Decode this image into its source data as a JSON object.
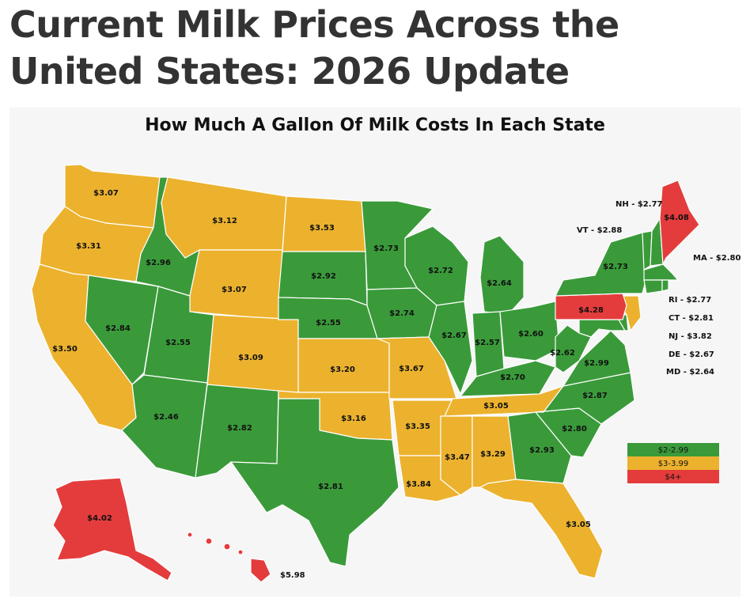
{
  "headline": "Current Milk Prices Across the United States: 2026 Update",
  "map": {
    "title": "How Much A Gallon Of Milk Costs In Each State",
    "colors": {
      "low": "#3a9a3a",
      "mid": "#ecb22e",
      "high": "#e43c3c"
    },
    "legend": [
      {
        "label": "$2-2.99",
        "range": [
          2,
          2.99
        ]
      },
      {
        "label": "$3-3.99",
        "range": [
          3,
          3.99
        ]
      },
      {
        "label": "$4+",
        "range": [
          4,
          null
        ]
      }
    ],
    "states": [
      {
        "code": "WA",
        "price": 3.07,
        "label": "$3.07"
      },
      {
        "code": "OR",
        "price": 3.31,
        "label": "$3.31"
      },
      {
        "code": "CA",
        "price": 3.5,
        "label": "$3.50"
      },
      {
        "code": "NV",
        "price": 2.84,
        "label": "$2.84"
      },
      {
        "code": "ID",
        "price": 2.96,
        "label": "$2.96"
      },
      {
        "code": "MT",
        "price": 3.12,
        "label": "$3.12"
      },
      {
        "code": "WY",
        "price": 3.07,
        "label": "$3.07"
      },
      {
        "code": "UT",
        "price": 2.55,
        "label": "$2.55"
      },
      {
        "code": "AZ",
        "price": 2.46,
        "label": "$2.46"
      },
      {
        "code": "CO",
        "price": 3.09,
        "label": "$3.09"
      },
      {
        "code": "NM",
        "price": 2.82,
        "label": "$2.82"
      },
      {
        "code": "ND",
        "price": 3.53,
        "label": "$3.53"
      },
      {
        "code": "SD",
        "price": 2.92,
        "label": "$2.92"
      },
      {
        "code": "NE",
        "price": 2.55,
        "label": "$2.55"
      },
      {
        "code": "KS",
        "price": 3.2,
        "label": "$3.20"
      },
      {
        "code": "OK",
        "price": 3.16,
        "label": "$3.16"
      },
      {
        "code": "TX",
        "price": 2.81,
        "label": "$2.81"
      },
      {
        "code": "MN",
        "price": 2.73,
        "label": "$2.73"
      },
      {
        "code": "IA",
        "price": 2.74,
        "label": "$2.74"
      },
      {
        "code": "MO",
        "price": 3.67,
        "label": "$3.67"
      },
      {
        "code": "AR",
        "price": 3.35,
        "label": "$3.35"
      },
      {
        "code": "LA",
        "price": 3.84,
        "label": "$3.84"
      },
      {
        "code": "WI",
        "price": 2.72,
        "label": "$2.72"
      },
      {
        "code": "IL",
        "price": 2.67,
        "label": "$2.67"
      },
      {
        "code": "MI",
        "price": 2.64,
        "label": "$2.64"
      },
      {
        "code": "IN",
        "price": 2.57,
        "label": "$2.57"
      },
      {
        "code": "OH",
        "price": 2.6,
        "label": "$2.60"
      },
      {
        "code": "KY",
        "price": 2.7,
        "label": "$2.70"
      },
      {
        "code": "TN",
        "price": 3.05,
        "label": "$3.05"
      },
      {
        "code": "MS",
        "price": 3.47,
        "label": "$3.47"
      },
      {
        "code": "AL",
        "price": 3.29,
        "label": "$3.29"
      },
      {
        "code": "GA",
        "price": 2.93,
        "label": "$2.93"
      },
      {
        "code": "FL",
        "price": 3.05,
        "label": "$3.05"
      },
      {
        "code": "SC",
        "price": 2.8,
        "label": "$2.80"
      },
      {
        "code": "NC",
        "price": 2.87,
        "label": "$2.87"
      },
      {
        "code": "VA",
        "price": 2.99,
        "label": "$2.99"
      },
      {
        "code": "WV",
        "price": 2.62,
        "label": "$2.62"
      },
      {
        "code": "PA",
        "price": 4.28,
        "label": "$4.28"
      },
      {
        "code": "NY",
        "price": 2.73,
        "label": "$2.73"
      },
      {
        "code": "ME",
        "price": 4.08,
        "label": "$4.08"
      },
      {
        "code": "AK",
        "price": 4.02,
        "label": "$4.02"
      },
      {
        "code": "HI",
        "price": 5.98,
        "label": "$5.98"
      },
      {
        "code": "NH",
        "price": 2.77,
        "label": "NH - $2.77"
      },
      {
        "code": "VT",
        "price": 2.88,
        "label": "VT - $2.88"
      },
      {
        "code": "MA",
        "price": 2.8,
        "label": "MA - $2.80"
      },
      {
        "code": "RI",
        "price": 2.77,
        "label": "RI - $2.77"
      },
      {
        "code": "CT",
        "price": 2.81,
        "label": "CT - $2.81"
      },
      {
        "code": "NJ",
        "price": 3.82,
        "label": "NJ - $3.82"
      },
      {
        "code": "DE",
        "price": 2.67,
        "label": "DE - $2.67"
      },
      {
        "code": "MD",
        "price": 2.64,
        "label": "MD - $2.64"
      }
    ]
  }
}
